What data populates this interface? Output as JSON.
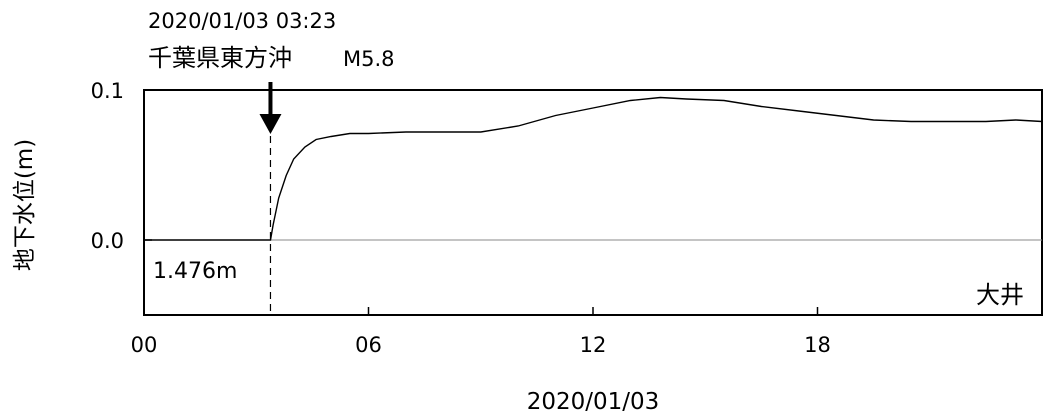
{
  "event": {
    "datetime": "2020/01/03 03:23",
    "name": "千葉県東方沖",
    "magnitude": "M5.8"
  },
  "chart_data": {
    "type": "line",
    "ylabel": "地下水位(m)",
    "xlabel": "2020/01/03",
    "xlim": [
      0,
      24
    ],
    "ylim": [
      -0.05,
      0.1
    ],
    "x_ticks": [
      0,
      6,
      12,
      18
    ],
    "x_tick_labels": [
      "00",
      "06",
      "12",
      "18"
    ],
    "y_ticks": [
      0.0,
      0.1
    ],
    "y_tick_labels": [
      "0.0",
      "0.1"
    ],
    "event_time": 3.38,
    "baseline_label": "1.476m",
    "station": "大井",
    "grid": false,
    "series": [
      {
        "x": [
          0,
          1.5,
          3.38,
          3.45,
          3.6,
          3.8,
          4.0,
          4.3,
          4.6,
          5.0,
          5.5,
          6.0,
          7.0,
          8.0,
          9.0,
          10.0,
          11.0,
          12.0,
          13.0,
          13.8,
          14.5,
          15.5,
          16.5,
          17.5,
          18.5,
          19.5,
          20.5,
          21.5,
          22.5,
          23.3,
          24.0
        ],
        "y": [
          0.0,
          0.0,
          0.0,
          0.01,
          0.028,
          0.043,
          0.054,
          0.062,
          0.067,
          0.069,
          0.071,
          0.071,
          0.072,
          0.072,
          0.072,
          0.076,
          0.083,
          0.088,
          0.093,
          0.095,
          0.094,
          0.093,
          0.089,
          0.086,
          0.083,
          0.08,
          0.079,
          0.079,
          0.079,
          0.08,
          0.079
        ]
      }
    ]
  }
}
